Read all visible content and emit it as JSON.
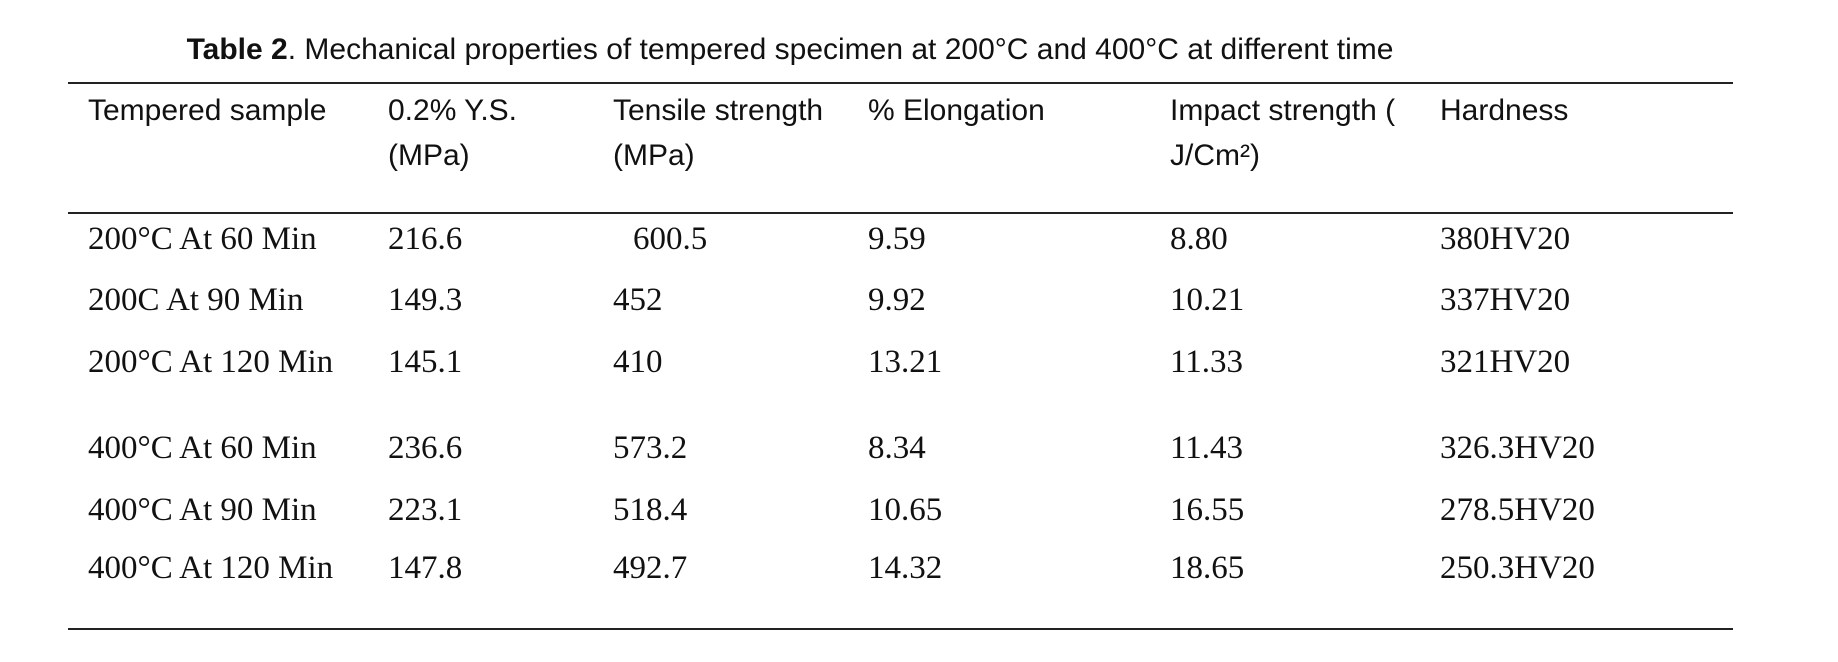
{
  "caption": {
    "label": "Table 2",
    "text": ". Mechanical properties of tempered specimen at 200°C and 400°C at different time"
  },
  "table": {
    "headers": [
      "Tempered sample",
      "0.2% Y.S. (MPa)",
      "Tensile strength (MPa)",
      "%  Elongation",
      "Impact strength ( J/Cm²)",
      "Hardness"
    ],
    "rows": [
      [
        "200°C At 60 Min",
        "216.6",
        "600.5",
        "9.59",
        "8.80",
        "380HV20"
      ],
      [
        "200C At 90 Min",
        "149.3",
        "452",
        "9.92",
        "10.21",
        "337HV20"
      ],
      [
        "200°C At 120 Min",
        "145.1",
        "410",
        "13.21",
        "11.33",
        "321HV20"
      ],
      [
        "400°C At 60 Min",
        "236.6",
        "573.2",
        "8.34",
        "11.43",
        "326.3HV20"
      ],
      [
        "400°C At 90 Min",
        "223.1",
        "518.4",
        "10.65",
        "16.55",
        "278.5HV20"
      ],
      [
        "400°C At 120 Min",
        "147.8",
        "492.7",
        "14.32",
        "18.65",
        "250.3HV20"
      ]
    ]
  }
}
